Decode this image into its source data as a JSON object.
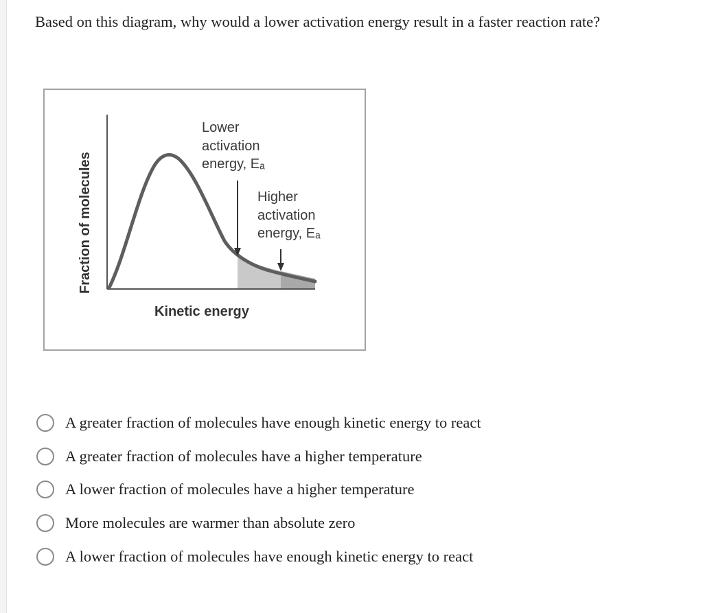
{
  "question": {
    "text": "Based on this diagram, why would a lower activation energy result in a faster reaction rate?"
  },
  "figure": {
    "y_axis_label": "Fraction of molecules",
    "x_axis_label": "Kinetic energy",
    "lower_ea_label": [
      "Lower",
      "activation",
      "energy, Eₐ"
    ],
    "higher_ea_label": [
      "Higher",
      "activation",
      "energy, Eₐ"
    ],
    "curve_color": "#5e5e5e",
    "shade_lower_color": "#c9c9c9",
    "shade_higher_color": "#a9a9a9"
  },
  "answers": {
    "options": [
      {
        "label": "A greater fraction of molecules have enough kinetic energy to react",
        "selected": false
      },
      {
        "label": "A greater fraction of molecules have a higher temperature",
        "selected": false
      },
      {
        "label": "A lower fraction of molecules have a higher temperature",
        "selected": false
      },
      {
        "label": "More molecules are warmer than absolute zero",
        "selected": false
      },
      {
        "label": "A lower fraction of molecules have enough kinetic energy to react",
        "selected": false
      }
    ]
  }
}
